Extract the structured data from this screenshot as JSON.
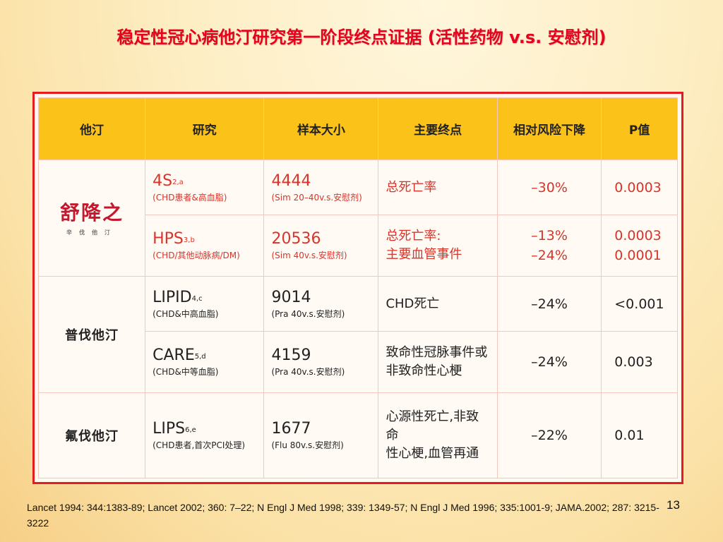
{
  "title": "稳定性冠心病他汀研究第一阶段终点证据 (活性药物 v.s. 安慰剂)",
  "headers": [
    "他汀",
    "研究",
    "样本大小",
    "主要终点",
    "相对风险下降",
    "P值"
  ],
  "logo": {
    "text": "舒降之",
    "sub": "辛伐他汀"
  },
  "rows": [
    {
      "study": "4S",
      "study_ref": "2,a",
      "study_note": "(CHD患者&高血脂)",
      "size": "4444",
      "size_note": "(Sim 20–40v.s.安慰剂)",
      "endpoint": "总死亡率",
      "rrr": "–30%",
      "p": "0.0003"
    },
    {
      "study": "HPS",
      "study_ref": "3,b",
      "study_note": "(CHD/其他动脉病/DM)",
      "size": "20536",
      "size_note": "(Sim 40v.s.安慰剂)",
      "endpoint_1": "总死亡率:",
      "endpoint_2": "主要血管事件",
      "rrr_1": "–13%",
      "rrr_2": "–24%",
      "p_1": "0.0003",
      "p_2": "0.0001"
    },
    {
      "statin": "普伐他汀",
      "study": "LIPID",
      "study_ref": "4,c",
      "study_note": "(CHD&中高血脂)",
      "size": "9014",
      "size_note": "(Pra 40v.s.安慰剂)",
      "endpoint": "CHD死亡",
      "rrr": "–24%",
      "p": "<0.001"
    },
    {
      "study": "CARE",
      "study_ref": "5,d",
      "study_note": "(CHD&中等血脂)",
      "size": "4159",
      "size_note": "(Pra 40v.s.安慰剂)",
      "endpoint_1": "致命性冠脉事件或",
      "endpoint_2": "非致命性心梗",
      "rrr": "–24%",
      "p": "0.003"
    },
    {
      "statin": "氟伐他汀",
      "study": "LIPS",
      "study_ref": "6,e",
      "study_note": "(CHD患者,首次PCI处理)",
      "size": "1677",
      "size_note": "(Flu 80v.s.安慰剂)",
      "endpoint_1": "心源性死亡,非致命",
      "endpoint_2": "性心梗,血管再通",
      "rrr": "–22%",
      "p": "0.01"
    }
  ],
  "footnote": "Lancet 1994: 344:1383-89; Lancet 2002; 360: 7–22; N Engl J Med 1998; 339: 1349-57; N Engl J Med 1996; 335:1001-9; JAMA.2002; 287: 3215-3222",
  "page_number": "13",
  "colors": {
    "title": "#e8001c",
    "header_bg": "#fbc21a",
    "frame": "#e41b23",
    "simvastatin_text": "#d8342a"
  }
}
